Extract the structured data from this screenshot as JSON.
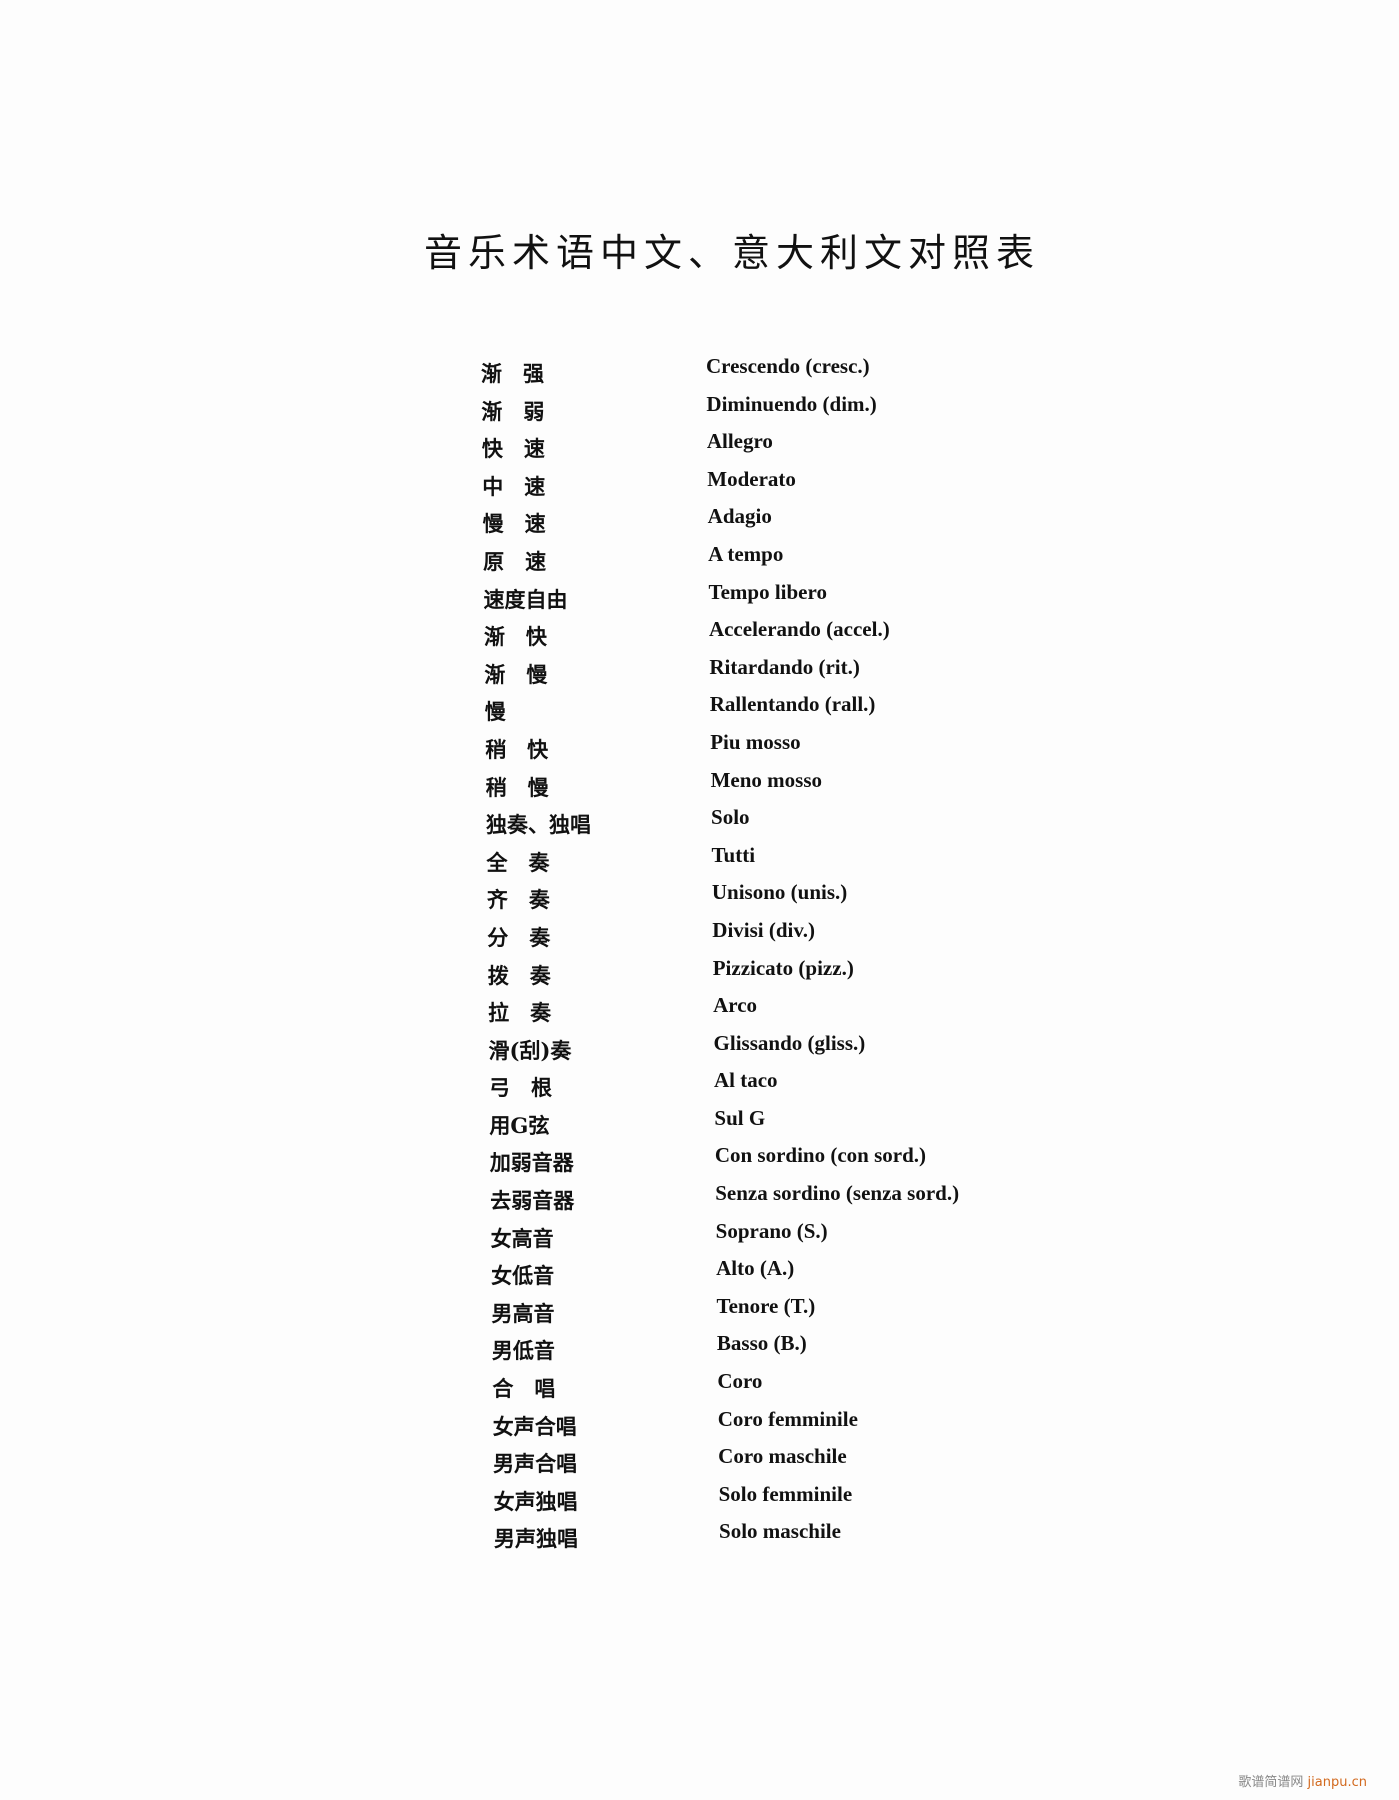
{
  "title": "音乐术语中文、意大利文对照表",
  "terms": [
    {
      "zh": "渐　强",
      "it": "Crescendo (cresc.)"
    },
    {
      "zh": "渐　弱",
      "it": "Diminuendo (dim.)"
    },
    {
      "zh": "快　速",
      "it": "Allegro"
    },
    {
      "zh": "中　速",
      "it": "Moderato"
    },
    {
      "zh": "慢　速",
      "it": "Adagio"
    },
    {
      "zh": "原　速",
      "it": "A tempo"
    },
    {
      "zh": "速度自由",
      "it": "Tempo libero"
    },
    {
      "zh": "渐　快",
      "it": "Accelerando (accel.)"
    },
    {
      "zh": "渐　慢",
      "it": "Ritardando (rit.)"
    },
    {
      "zh": "慢",
      "it": "Rallentando (rall.)"
    },
    {
      "zh": "稍　快",
      "it": "Piu mosso"
    },
    {
      "zh": "稍　慢",
      "it": "Meno mosso"
    },
    {
      "zh": "独奏、独唱",
      "it": "Solo"
    },
    {
      "zh": "全　奏",
      "it": "Tutti"
    },
    {
      "zh": "齐　奏",
      "it": "Unisono (unis.)"
    },
    {
      "zh": "分　奏",
      "it": "Divisi (div.)"
    },
    {
      "zh": "拨　奏",
      "it": "Pizzicato (pizz.)"
    },
    {
      "zh": "拉　奏",
      "it": "Arco"
    },
    {
      "zh": "滑(刮)奏",
      "it": "Glissando (gliss.)"
    },
    {
      "zh": "弓　根",
      "it": "Al taco"
    },
    {
      "zh": "用G弦",
      "it": "Sul G"
    },
    {
      "zh": "加弱音器",
      "it": "Con sordino (con sord.)"
    },
    {
      "zh": "去弱音器",
      "it": "Senza sordino (senza sord.)"
    },
    {
      "zh": "女高音",
      "it": "Soprano (S.)"
    },
    {
      "zh": "女低音",
      "it": "Alto (A.)"
    },
    {
      "zh": "男高音",
      "it": "Tenore (T.)"
    },
    {
      "zh": "男低音",
      "it": "Basso (B.)"
    },
    {
      "zh": "合　唱",
      "it": "Coro"
    },
    {
      "zh": "女声合唱",
      "it": "Coro femminile"
    },
    {
      "zh": "男声合唱",
      "it": "Coro maschile"
    },
    {
      "zh": "女声独唱",
      "it": "Solo femminile"
    },
    {
      "zh": "男声独唱",
      "it": "Solo maschile"
    }
  ],
  "watermark": {
    "cn": "歌谱简谱网",
    "site": "jianpu.cn"
  }
}
